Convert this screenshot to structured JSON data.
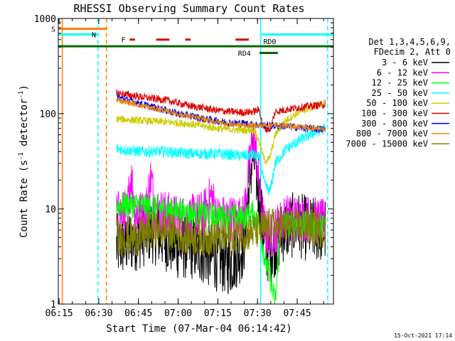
{
  "chart_data": {
    "type": "line",
    "title": "RHESSI Observing Summary Count Rates",
    "xlabel": "Start Time (07-Mar-04 06:14:42)",
    "ylabel_main": "Count Rate (s",
    "ylabel_sup": "-1",
    "ylabel_rest": " detector",
    "ylabel_end": ")",
    "ylog": true,
    "ylim": [
      1,
      1000
    ],
    "xlim_min": [
      0,
      104
    ],
    "x_ticks": [
      {
        "label": "06:15",
        "m": 0.3
      },
      {
        "label": "06:30",
        "m": 15.3
      },
      {
        "label": "06:45",
        "m": 30.3
      },
      {
        "label": "07:00",
        "m": 45.3
      },
      {
        "label": "07:15",
        "m": 60.3
      },
      {
        "label": "07:30",
        "m": 75.3
      },
      {
        "label": "07:45",
        "m": 90.3
      }
    ],
    "y_ticks": [
      {
        "label": "1",
        "v": 1
      },
      {
        "label": "10",
        "v": 10
      },
      {
        "label": "100",
        "v": 100
      },
      {
        "label": "1000",
        "v": 1000
      }
    ],
    "legend": {
      "title_line1": "Det 1,3,4,5,6,9,",
      "title_line2": "FDecim 2, Att 0",
      "placement": "right",
      "entries": [
        {
          "label": "3 - 6 keV",
          "color": "#000000"
        },
        {
          "label": "6 - 12 keV",
          "color": "#ff00ff"
        },
        {
          "label": "12 - 25 keV",
          "color": "#00ff00"
        },
        {
          "label": "25 - 50 keV",
          "color": "#00ffff"
        },
        {
          "label": "50 - 100 keV",
          "color": "#cccc00"
        },
        {
          "label": "100 - 300 keV",
          "color": "#dd0000"
        },
        {
          "label": "300 - 800 keV",
          "color": "#0000ff"
        },
        {
          "label": "800 - 7000 keV",
          "color": "#ee8800"
        },
        {
          "label": "7000 - 15000 keV",
          "color": "#808000"
        }
      ]
    },
    "flags": [
      {
        "label": "S",
        "color": "#ff8000",
        "v": 780,
        "segments": [
          [
            0,
            18.5
          ]
        ]
      },
      {
        "label": "N",
        "color": "#00ffff",
        "v": 680,
        "segments": [
          [
            0,
            14.8
          ],
          [
            77,
            104
          ]
        ]
      },
      {
        "label": "F",
        "color": "#dd0000",
        "v": 600,
        "segments": [
          [
            27,
            29
          ],
          [
            37,
            42
          ],
          [
            48,
            50
          ],
          [
            67,
            72
          ]
        ]
      },
      {
        "label": "RD0",
        "color": "#006600",
        "v": 510,
        "segments": [
          [
            0,
            104
          ]
        ]
      },
      {
        "label": "RD4",
        "color": "#006600",
        "v": 435,
        "segments": [
          [
            76,
            83
          ]
        ]
      }
    ],
    "vlines": [
      {
        "m": 1.5,
        "color": "#ff8000",
        "style": "solid"
      },
      {
        "m": 15.0,
        "color": "#00ffff",
        "style": "dashed"
      },
      {
        "m": 18.2,
        "color": "#ff8000",
        "style": "dashed"
      },
      {
        "m": 76.5,
        "color": "#00ffff",
        "style": "solid"
      },
      {
        "m": 101.8,
        "color": "#00ffff",
        "style": "dashed"
      }
    ],
    "data_start": 22,
    "series": [
      {
        "name": "3 - 6 keV",
        "color": "#000000",
        "noise": 0.35,
        "points": [
          [
            22,
            4
          ],
          [
            30,
            5
          ],
          [
            35,
            6
          ],
          [
            40,
            5
          ],
          [
            45,
            4
          ],
          [
            50,
            4
          ],
          [
            55,
            3.5
          ],
          [
            60,
            3
          ],
          [
            65,
            2.7
          ],
          [
            70,
            4
          ],
          [
            72,
            15
          ],
          [
            73.5,
            38
          ],
          [
            75,
            22
          ],
          [
            76,
            13
          ],
          [
            78,
            4
          ],
          [
            80,
            3.5
          ],
          [
            85,
            6
          ],
          [
            90,
            7
          ],
          [
            95,
            6
          ],
          [
            101,
            6
          ]
        ]
      },
      {
        "name": "6 - 12 keV",
        "color": "#ff00ff",
        "noise": 0.25,
        "points": [
          [
            22,
            9
          ],
          [
            26,
            9
          ],
          [
            27.5,
            24
          ],
          [
            29,
            9
          ],
          [
            33,
            9
          ],
          [
            35,
            22
          ],
          [
            36.5,
            10
          ],
          [
            40,
            9
          ],
          [
            45,
            8
          ],
          [
            50,
            8
          ],
          [
            55,
            9
          ],
          [
            58,
            14
          ],
          [
            60,
            8
          ],
          [
            65,
            8
          ],
          [
            70,
            8
          ],
          [
            72,
            25
          ],
          [
            73.5,
            58
          ],
          [
            75,
            35
          ],
          [
            76,
            15
          ],
          [
            78,
            6
          ],
          [
            80,
            5
          ],
          [
            85,
            8
          ],
          [
            90,
            8
          ],
          [
            95,
            8
          ],
          [
            101,
            7
          ]
        ]
      },
      {
        "name": "12 - 25 keV",
        "color": "#00ff00",
        "noise": 0.14,
        "points": [
          [
            22,
            11
          ],
          [
            30,
            11
          ],
          [
            40,
            10
          ],
          [
            50,
            9
          ],
          [
            60,
            8.5
          ],
          [
            70,
            8
          ],
          [
            73.5,
            9
          ],
          [
            76,
            7
          ],
          [
            78,
            3
          ],
          [
            80,
            2
          ],
          [
            82,
            1
          ],
          [
            84,
            7
          ],
          [
            90,
            7
          ],
          [
            101,
            6.5
          ]
        ]
      },
      {
        "name": "25 - 50 keV",
        "color": "#00ffff",
        "noise": 0.06,
        "points": [
          [
            22,
            43
          ],
          [
            30,
            40
          ],
          [
            40,
            40
          ],
          [
            50,
            38
          ],
          [
            60,
            38
          ],
          [
            65,
            37
          ],
          [
            70,
            36
          ],
          [
            73.5,
            37
          ],
          [
            76,
            34
          ],
          [
            78,
            18
          ],
          [
            80,
            15
          ],
          [
            82,
            30
          ],
          [
            86,
            42
          ],
          [
            90,
            50
          ],
          [
            95,
            60
          ],
          [
            101,
            70
          ]
        ]
      },
      {
        "name": "50 - 100 keV",
        "color": "#cccc00",
        "noise": 0.04,
        "points": [
          [
            22,
            88
          ],
          [
            30,
            85
          ],
          [
            40,
            82
          ],
          [
            50,
            78
          ],
          [
            60,
            70
          ],
          [
            70,
            67
          ],
          [
            74,
            68
          ],
          [
            76,
            50
          ],
          [
            78,
            32
          ],
          [
            80,
            34
          ],
          [
            82,
            60
          ],
          [
            86,
            85
          ],
          [
            90,
            100
          ],
          [
            95,
            115
          ],
          [
            101,
            130
          ]
        ]
      },
      {
        "name": "100 - 300 keV",
        "color": "#dd0000",
        "noise": 0.04,
        "points": [
          [
            22,
            165
          ],
          [
            28,
            155
          ],
          [
            35,
            145
          ],
          [
            40,
            140
          ],
          [
            45,
            130
          ],
          [
            50,
            120
          ],
          [
            55,
            115
          ],
          [
            60,
            108
          ],
          [
            65,
            105
          ],
          [
            70,
            103
          ],
          [
            73.5,
            105
          ],
          [
            76,
            110
          ],
          [
            77.5,
            70
          ],
          [
            80,
            68
          ],
          [
            82,
            105
          ],
          [
            86,
            110
          ],
          [
            90,
            115
          ],
          [
            95,
            120
          ],
          [
            101,
            125
          ]
        ]
      },
      {
        "name": "300 - 800 keV",
        "color": "#0000ff",
        "noise": 0.04,
        "points": [
          [
            22,
            150
          ],
          [
            28,
            135
          ],
          [
            35,
            118
          ],
          [
            40,
            110
          ],
          [
            45,
            100
          ],
          [
            50,
            95
          ],
          [
            55,
            88
          ],
          [
            60,
            84
          ],
          [
            65,
            80
          ],
          [
            70,
            79
          ],
          [
            76,
            76
          ],
          [
            80,
            75
          ],
          [
            85,
            74
          ],
          [
            90,
            72
          ],
          [
            95,
            70
          ],
          [
            101,
            68
          ]
        ]
      },
      {
        "name": "800 - 7000 keV",
        "color": "#ee8800",
        "noise": 0.03,
        "points": [
          [
            22,
            140
          ],
          [
            28,
            128
          ],
          [
            35,
            115
          ],
          [
            40,
            108
          ],
          [
            45,
            100
          ],
          [
            50,
            93
          ],
          [
            55,
            87
          ],
          [
            60,
            82
          ],
          [
            65,
            78
          ],
          [
            70,
            76
          ],
          [
            76,
            75
          ],
          [
            80,
            76
          ],
          [
            85,
            75
          ],
          [
            90,
            73
          ],
          [
            95,
            71
          ],
          [
            101,
            68
          ]
        ]
      },
      {
        "name": "7000 - 15000 keV",
        "color": "#808000",
        "noise": 0.2,
        "points": [
          [
            22,
            5
          ],
          [
            30,
            5
          ],
          [
            35,
            6
          ],
          [
            40,
            6
          ],
          [
            45,
            5.5
          ],
          [
            50,
            5
          ],
          [
            55,
            5
          ],
          [
            60,
            5
          ],
          [
            65,
            5
          ],
          [
            70,
            5.5
          ],
          [
            76,
            6
          ],
          [
            80,
            6.5
          ],
          [
            85,
            6.5
          ],
          [
            90,
            6.5
          ],
          [
            95,
            6.5
          ],
          [
            101,
            6
          ]
        ]
      }
    ]
  },
  "footer_timestamp": "15-Oct-2021 17:14"
}
